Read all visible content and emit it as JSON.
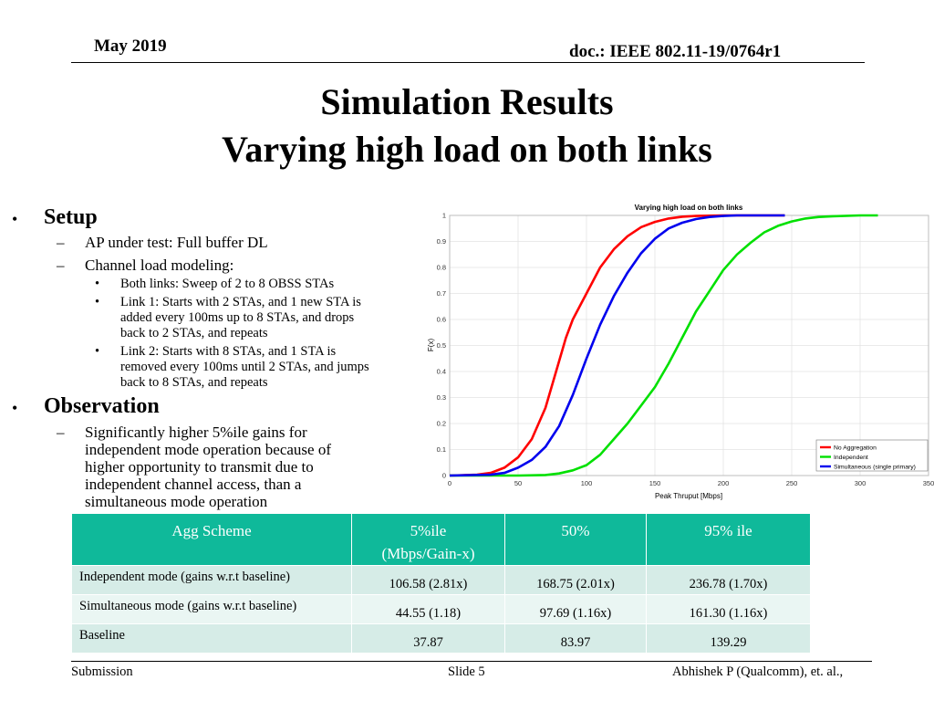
{
  "header": {
    "date": "May 2019",
    "doc": "doc.: IEEE 802.11-19/0764r1"
  },
  "title": {
    "line1": "Simulation Results",
    "line2": "Varying high load on both links"
  },
  "body": {
    "setup": {
      "heading": "Setup",
      "items": [
        "AP under test: Full buffer DL",
        "Channel load modeling:"
      ],
      "subitems": [
        [
          "Both links: Sweep of 2 to 8 OBSS STAs"
        ],
        [
          "Link 1: Starts with 2 STAs, and 1 new STA is",
          "added every 100ms up to 8 STAs, and drops",
          "back to 2 STAs, and repeats"
        ],
        [
          "Link 2: Starts with 8 STAs, and 1 STA is",
          "removed every 100ms until 2 STAs, and jumps",
          "back to 8 STAs, and repeats"
        ]
      ]
    },
    "observation": {
      "heading": "Observation",
      "lines": [
        "Significantly higher 5%ile gains for",
        "independent mode operation because of",
        "higher opportunity to transmit due to",
        "independent channel access, than a",
        "simultaneous mode operation"
      ]
    }
  },
  "chart_data": {
    "type": "line",
    "title": "Varying high load on both links",
    "xlabel": "Peak Thruput [Mbps]",
    "ylabel": "F(x)",
    "xlim": [
      0,
      350
    ],
    "ylim": [
      0,
      1
    ],
    "xticks": [
      0,
      50,
      100,
      150,
      200,
      250,
      300,
      350
    ],
    "yticks": [
      0,
      0.1,
      0.2,
      0.3,
      0.4,
      0.5,
      0.6,
      0.7,
      0.8,
      0.9,
      1
    ],
    "grid": true,
    "legend_position": "bottom-right",
    "series": [
      {
        "name": "No Aggregation",
        "color": "#ff0000",
        "x": [
          0,
          20,
          30,
          40,
          50,
          60,
          70,
          75,
          80,
          85,
          90,
          100,
          110,
          120,
          130,
          140,
          150,
          160,
          170,
          180,
          200,
          220,
          245
        ],
        "y": [
          0,
          0.003,
          0.01,
          0.03,
          0.07,
          0.14,
          0.26,
          0.35,
          0.44,
          0.53,
          0.6,
          0.7,
          0.8,
          0.87,
          0.92,
          0.955,
          0.975,
          0.988,
          0.995,
          0.998,
          1,
          1,
          1
        ]
      },
      {
        "name": "Independent",
        "color": "#00e000",
        "x": [
          0,
          50,
          70,
          80,
          90,
          100,
          110,
          120,
          130,
          140,
          150,
          160,
          170,
          180,
          190,
          200,
          210,
          220,
          230,
          240,
          250,
          260,
          270,
          280,
          300,
          313
        ],
        "y": [
          0,
          0,
          0.002,
          0.008,
          0.02,
          0.04,
          0.08,
          0.14,
          0.2,
          0.27,
          0.34,
          0.43,
          0.53,
          0.63,
          0.71,
          0.79,
          0.85,
          0.895,
          0.935,
          0.96,
          0.977,
          0.988,
          0.994,
          0.997,
          1,
          1
        ]
      },
      {
        "name": "Simultaneous (single primary)",
        "color": "#0000ee",
        "x": [
          0,
          30,
          40,
          50,
          60,
          70,
          80,
          90,
          100,
          110,
          120,
          130,
          140,
          150,
          160,
          170,
          180,
          190,
          200,
          210,
          230,
          245
        ],
        "y": [
          0,
          0.003,
          0.01,
          0.03,
          0.06,
          0.11,
          0.19,
          0.31,
          0.45,
          0.58,
          0.69,
          0.78,
          0.855,
          0.91,
          0.95,
          0.972,
          0.986,
          0.994,
          0.998,
          1,
          1,
          1
        ]
      }
    ]
  },
  "table": {
    "headers": [
      {
        "line1": "Agg Scheme",
        "line2": ""
      },
      {
        "line1": "5%ile",
        "line2": "(Mbps/Gain-x)"
      },
      {
        "line1": "50%",
        "line2": ""
      },
      {
        "line1": "95% ile",
        "line2": ""
      }
    ],
    "rows": [
      [
        "Independent mode (gains w.r.t baseline)",
        "106.58 (2.81x)",
        "168.75 (2.01x)",
        "236.78 (1.70x)"
      ],
      [
        "Simultaneous mode (gains w.r.t baseline)",
        "44.55 (1.18)",
        "97.69 (1.16x)",
        "161.30 (1.16x)"
      ],
      [
        "Baseline",
        "37.87",
        "83.97",
        "139.29"
      ]
    ]
  },
  "footer": {
    "left": "Submission",
    "center": "Slide 5",
    "right": "Abhishek P (Qualcomm), et. al.,"
  }
}
